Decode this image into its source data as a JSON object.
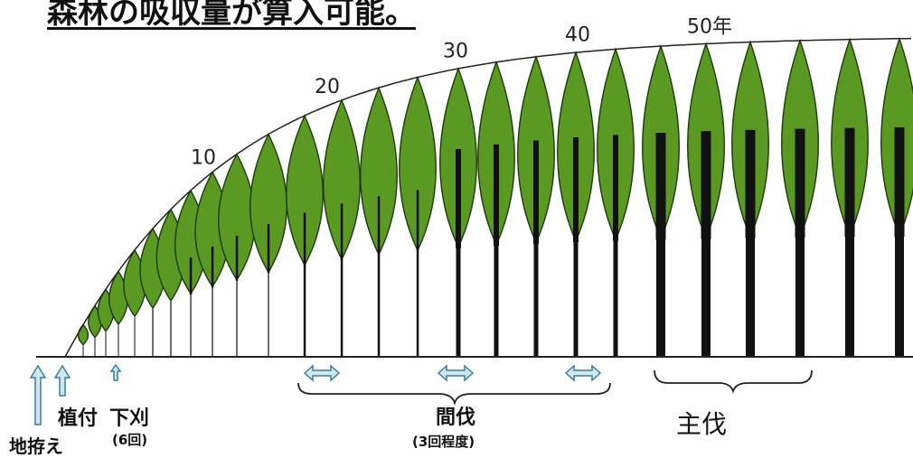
{
  "heading": "森林の吸収量が算入可能。",
  "age_labels": [
    {
      "text": "10",
      "age": 10
    },
    {
      "text": "20",
      "age": 20
    },
    {
      "text": "30",
      "age": 30
    },
    {
      "text": "40",
      "age": 40
    },
    {
      "text": "50年",
      "age": 50
    }
  ],
  "operations": {
    "site_prep": "地拵え",
    "planting": "植付",
    "weeding": "下刈",
    "weeding_note": "(6回)",
    "thinning": "間伐",
    "thinning_note": "(3回程度)",
    "final_cut": "主伐"
  },
  "colors": {
    "crown": "#5a9a22",
    "crown_outline": "#1e3a0c",
    "trunk": "#111111",
    "arrow_fill": "#cfe8f0",
    "arrow_stroke": "#3a7f95"
  }
}
